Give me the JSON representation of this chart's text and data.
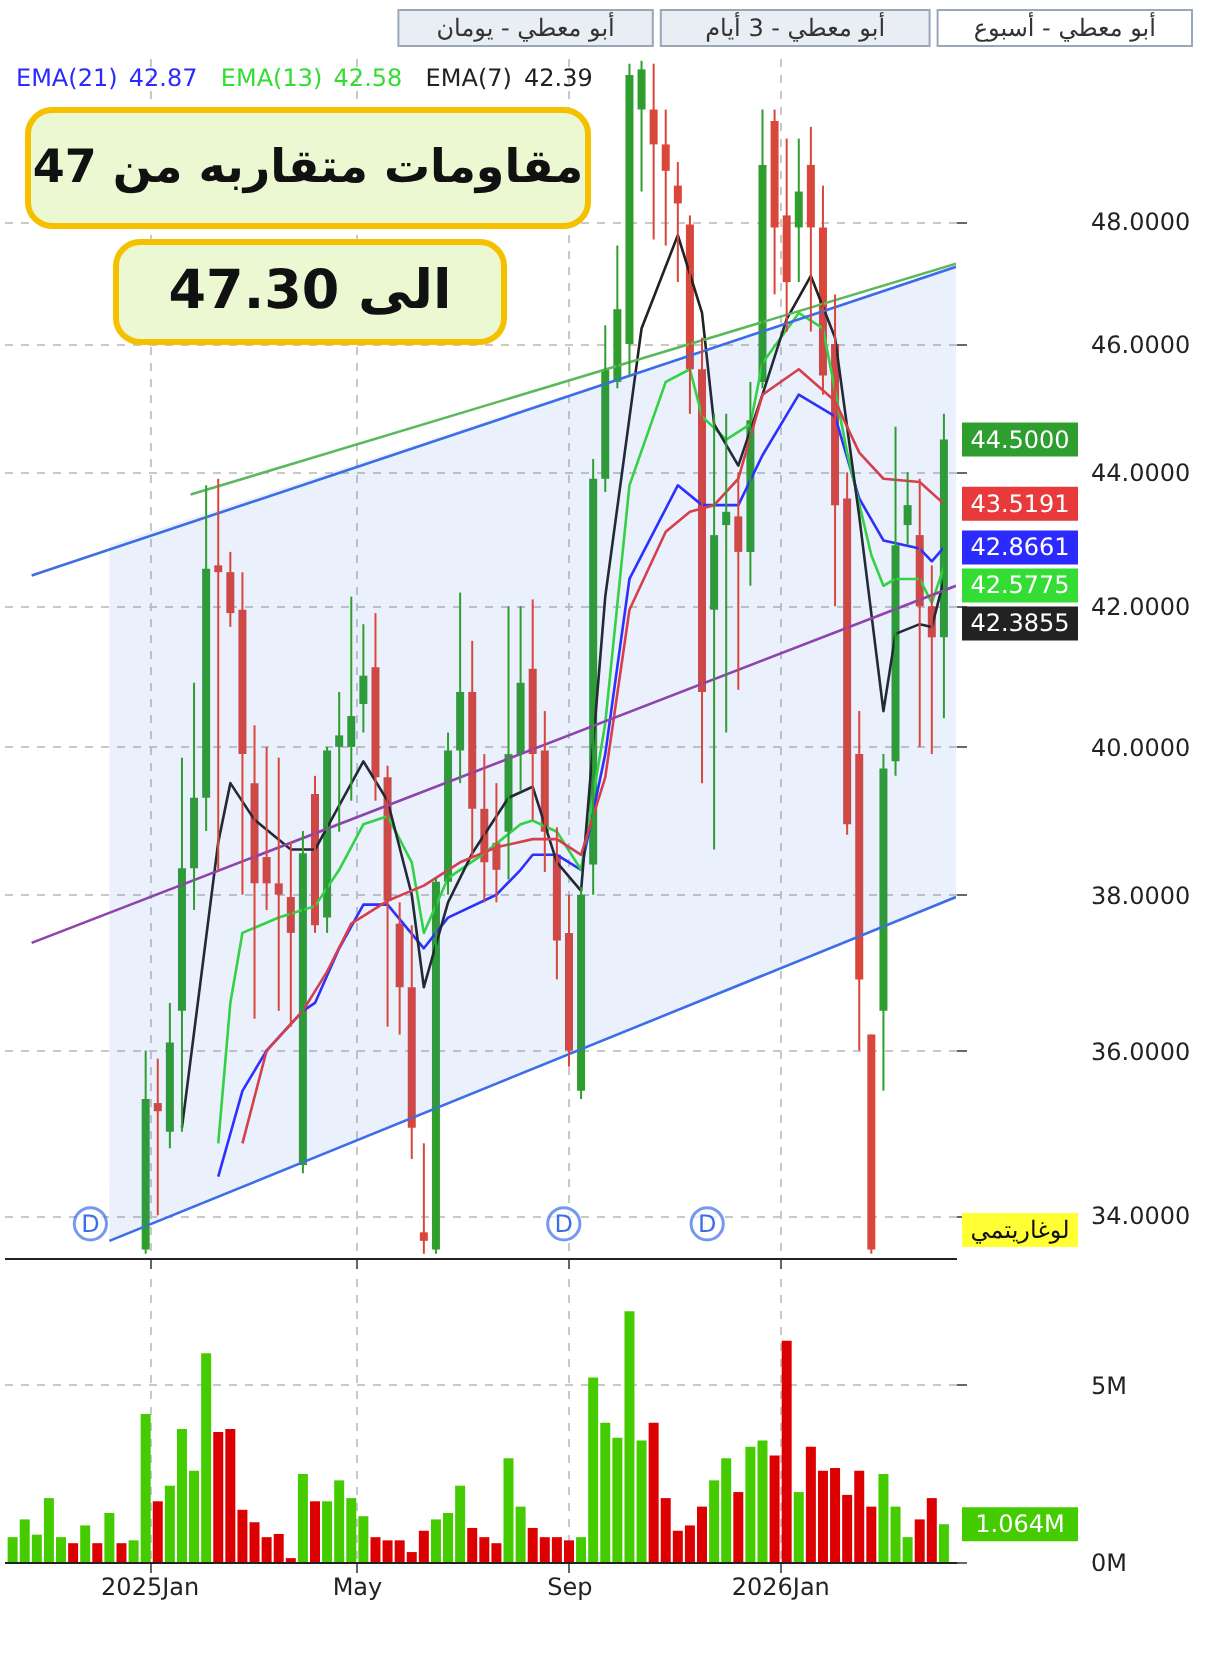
{
  "chart_data": [
    {
      "type": "candlestick",
      "x": [
        "2024-12-30",
        "2025-01-06",
        "2025-01-13",
        "2025-01-20",
        "2025-01-27",
        "2025-02-03",
        "2025-02-10",
        "2025-02-17",
        "2025-02-24",
        "2025-03-03",
        "2025-03-10",
        "2025-03-17",
        "2025-03-24",
        "2025-03-31",
        "2025-04-07",
        "2025-04-14",
        "2025-04-21",
        "2025-04-28",
        "2025-05-05",
        "2025-05-12",
        "2025-05-19",
        "2025-05-26",
        "2025-06-02",
        "2025-06-09",
        "2025-06-16",
        "2025-06-23",
        "2025-06-30",
        "2025-07-07",
        "2025-07-14",
        "2025-07-21",
        "2025-07-28",
        "2025-08-04",
        "2025-08-11",
        "2025-08-18",
        "2025-08-25",
        "2025-09-01",
        "2025-09-08",
        "2025-09-15",
        "2025-09-22",
        "2025-09-29",
        "2025-10-06",
        "2025-10-13",
        "2025-10-20",
        "2025-10-27",
        "2025-11-03",
        "2025-11-10",
        "2025-11-17",
        "2025-11-24",
        "2025-12-01",
        "2025-12-08",
        "2025-12-15",
        "2025-12-22",
        "2025-12-29",
        "2026-01-05",
        "2026-01-12",
        "2026-01-19",
        "2026-01-26",
        "2026-02-02",
        "2026-02-09",
        "2026-02-16",
        "2026-02-23",
        "2026-03-02",
        "2026-03-09",
        "2026-03-16",
        "2026-03-23",
        "2026-03-30",
        "2026-04-06"
      ],
      "ohlc": [
        [
          33.6,
          36.0,
          33.55,
          35.4
        ],
        [
          35.35,
          35.9,
          34.0,
          35.25
        ],
        [
          35.0,
          36.6,
          34.8,
          36.1
        ],
        [
          36.5,
          39.85,
          35.0,
          38.35
        ],
        [
          38.35,
          40.9,
          37.8,
          39.3
        ],
        [
          39.3,
          43.8,
          38.85,
          42.55
        ],
        [
          42.6,
          43.9,
          38.3,
          42.5
        ],
        [
          42.5,
          42.8,
          41.7,
          41.9
        ],
        [
          41.95,
          42.5,
          38.0,
          39.9
        ],
        [
          39.5,
          40.3,
          36.4,
          38.15
        ],
        [
          38.5,
          40.0,
          37.8,
          38.15
        ],
        [
          38.15,
          39.85,
          36.5,
          38.0
        ],
        [
          37.97,
          38.7,
          36.3,
          37.5
        ],
        [
          34.6,
          38.85,
          34.5,
          38.55
        ],
        [
          39.35,
          39.6,
          37.5,
          37.6
        ],
        [
          37.7,
          40.0,
          37.5,
          39.95
        ],
        [
          40.0,
          40.77,
          38.84,
          40.16
        ],
        [
          40.0,
          42.14,
          39.26,
          40.43
        ],
        [
          40.6,
          41.74,
          40.2,
          41.0
        ],
        [
          41.12,
          41.9,
          39.26,
          39.58
        ],
        [
          39.58,
          39.74,
          36.3,
          37.92
        ],
        [
          37.62,
          37.9,
          36.2,
          36.8
        ],
        [
          36.8,
          37.6,
          34.67,
          35.05
        ],
        [
          33.8,
          34.86,
          33.55,
          33.7
        ],
        [
          33.6,
          38.22,
          33.55,
          38.17
        ],
        [
          38.17,
          40.2,
          38.0,
          39.95
        ],
        [
          39.95,
          42.2,
          39.5,
          40.77
        ],
        [
          40.77,
          41.5,
          38.5,
          39.15
        ],
        [
          39.15,
          39.9,
          37.9,
          38.43
        ],
        [
          38.69,
          39.5,
          37.9,
          38.33
        ],
        [
          38.84,
          42.0,
          38.2,
          39.9
        ],
        [
          39.9,
          42.0,
          39.4,
          40.9
        ],
        [
          41.1,
          42.1,
          39.0,
          39.9
        ],
        [
          39.95,
          40.5,
          38.3,
          38.84
        ],
        [
          38.53,
          38.9,
          36.9,
          37.4
        ],
        [
          37.5,
          38.0,
          35.8,
          36.0
        ],
        [
          35.5,
          38.1,
          35.4,
          38.0
        ],
        [
          38.4,
          44.2,
          38.0,
          43.9
        ],
        [
          43.9,
          46.3,
          43.7,
          45.6
        ],
        [
          45.4,
          47.6,
          45.3,
          46.56
        ],
        [
          46.0,
          50.7,
          45.5,
          50.5
        ],
        [
          49.9,
          50.75,
          48.5,
          50.6
        ],
        [
          49.9,
          50.7,
          47.7,
          49.3
        ],
        [
          49.3,
          49.9,
          47.6,
          48.85
        ],
        [
          48.6,
          49.0,
          47.0,
          48.3
        ],
        [
          47.95,
          48.1,
          44.9,
          45.6
        ],
        [
          45.6,
          46.1,
          39.5,
          40.77
        ],
        [
          41.95,
          44.9,
          38.6,
          43.05
        ],
        [
          43.2,
          44.9,
          40.2,
          43.4
        ],
        [
          43.33,
          44.0,
          40.8,
          42.8
        ],
        [
          42.8,
          45.4,
          42.3,
          44.8
        ],
        [
          45.4,
          49.9,
          45.3,
          48.95
        ],
        [
          49.7,
          49.9,
          46.8,
          47.9
        ],
        [
          48.1,
          49.4,
          46.2,
          47.0
        ],
        [
          47.9,
          49.4,
          47.0,
          48.5
        ],
        [
          48.95,
          49.6,
          46.2,
          47.9
        ],
        [
          47.9,
          48.6,
          45.2,
          45.5
        ],
        [
          46.0,
          46.8,
          42.0,
          43.5
        ],
        [
          43.6,
          44.0,
          38.8,
          38.94
        ],
        [
          39.9,
          40.5,
          36.0,
          36.9
        ],
        [
          36.2,
          36.2,
          33.55,
          33.6
        ],
        [
          36.5,
          39.9,
          35.5,
          39.7
        ],
        [
          39.8,
          44.7,
          39.6,
          42.9
        ],
        [
          43.2,
          44.0,
          42.9,
          43.5
        ],
        [
          43.05,
          43.9,
          40.0,
          42.0
        ],
        [
          42.0,
          42.6,
          39.9,
          41.55
        ],
        [
          41.55,
          44.9,
          40.4,
          44.5
        ]
      ],
      "colors": [
        "#2e9e2e",
        "#d9473b",
        "#2e9e2e",
        "#2e9e2e",
        "#2e9e2e",
        "#2e9e2e",
        "#d9473b",
        "#d9473b",
        "#d9473b",
        "#d9473b",
        "#d9473b",
        "#d9473b",
        "#d9473b",
        "#2e9e2e",
        "#d9473b",
        "#2e9e2e",
        "#2e9e2e",
        "#2e9e2e",
        "#2e9e2e",
        "#d9473b",
        "#d9473b",
        "#d9473b",
        "#d9473b",
        "#d9473b",
        "#2e9e2e",
        "#2e9e2e",
        "#2e9e2e",
        "#d9473b",
        "#d9473b",
        "#d9473b",
        "#2e9e2e",
        "#2e9e2e",
        "#d9473b",
        "#d9473b",
        "#d9473b",
        "#d9473b",
        "#2e9e2e",
        "#2e9e2e",
        "#2e9e2e",
        "#2e9e2e",
        "#2e9e2e",
        "#2e9e2e",
        "#d9473b",
        "#d9473b",
        "#d9473b",
        "#d9473b",
        "#d9473b",
        "#2e9e2e",
        "#2e9e2e",
        "#d9473b",
        "#2e9e2e",
        "#2e9e2e",
        "#d9473b",
        "#d9473b",
        "#2e9e2e",
        "#d9473b",
        "#d9473b",
        "#d9473b",
        "#d9473b",
        "#d9473b",
        "#d9473b",
        "#2e9e2e",
        "#2e9e2e",
        "#2e9e2e",
        "#d9473b",
        "#d9473b",
        "#2e9e2e"
      ],
      "series": [
        {
          "name": "EMA(21)",
          "type": "line",
          "color": "#2b2bff",
          "x": [
            "2025-02-10",
            "2025-02-24",
            "2025-03-10",
            "2025-03-31",
            "2025-04-07",
            "2025-04-21",
            "2025-05-05",
            "2025-05-19",
            "2025-06-09",
            "2025-06-23",
            "2025-07-21",
            "2025-08-04",
            "2025-08-11",
            "2025-08-25",
            "2025-09-08",
            "2025-09-22",
            "2025-10-06",
            "2025-11-03",
            "2025-11-17",
            "2025-12-08",
            "2025-12-22",
            "2026-01-12",
            "2026-02-02",
            "2026-02-16",
            "2026-03-02",
            "2026-03-23",
            "2026-03-30",
            "2026-04-06"
          ],
          "values": [
            34.46,
            35.5,
            36.0,
            36.5,
            36.6,
            37.3,
            37.87,
            37.87,
            37.3,
            37.7,
            38.0,
            38.33,
            38.53,
            38.53,
            38.33,
            39.9,
            42.4,
            43.8,
            43.5,
            43.5,
            44.26,
            45.2,
            44.86,
            43.6,
            42.97,
            42.85,
            42.66,
            42.8661
          ],
          "value_labels": [
            null,
            null,
            null,
            null,
            null,
            null,
            null,
            null,
            null,
            null,
            null,
            null,
            null,
            null,
            null,
            null,
            null,
            null,
            null,
            null,
            null,
            null,
            null,
            null,
            null,
            null,
            null,
            "42.8661"
          ]
        },
        {
          "name": "EMA(13)",
          "type": "line",
          "color": "#33dd33",
          "x": [
            "2025-02-10",
            "2025-02-17",
            "2025-02-24",
            "2025-03-17",
            "2025-04-07",
            "2025-04-21",
            "2025-05-05",
            "2025-05-19",
            "2025-06-02",
            "2025-06-09",
            "2025-06-23",
            "2025-07-14",
            "2025-08-04",
            "2025-08-11",
            "2025-08-25",
            "2025-09-08",
            "2025-09-22",
            "2025-10-06",
            "2025-10-27",
            "2025-11-10",
            "2025-11-17",
            "2025-12-01",
            "2025-12-15",
            "2025-12-22",
            "2026-01-12",
            "2026-01-26",
            "2026-02-09",
            "2026-02-23",
            "2026-03-02",
            "2026-03-09",
            "2026-03-23",
            "2026-03-30",
            "2026-04-06"
          ],
          "values": [
            34.86,
            36.6,
            37.5,
            37.7,
            37.85,
            38.33,
            38.94,
            39.05,
            38.43,
            37.5,
            38.22,
            38.55,
            38.94,
            38.99,
            38.84,
            38.33,
            40.33,
            43.8,
            45.4,
            45.6,
            44.86,
            44.5,
            44.74,
            45.7,
            46.5,
            46.25,
            44.3,
            42.75,
            42.3,
            42.4,
            42.4,
            42.05,
            42.5775
          ],
          "value_labels": [
            null,
            null,
            null,
            null,
            null,
            null,
            null,
            null,
            null,
            null,
            null,
            null,
            null,
            null,
            null,
            null,
            null,
            null,
            null,
            null,
            null,
            null,
            null,
            null,
            null,
            null,
            null,
            null,
            null,
            null,
            null,
            null,
            "42.5775"
          ]
        },
        {
          "name": "EMA(7)",
          "type": "line",
          "color": "#222222",
          "x": [
            "2025-01-20",
            "2025-02-10",
            "2025-02-17",
            "2025-03-03",
            "2025-03-24",
            "2025-04-07",
            "2025-05-05",
            "2025-05-19",
            "2025-06-02",
            "2025-06-09",
            "2025-06-23",
            "2025-07-07",
            "2025-07-28",
            "2025-08-11",
            "2025-08-25",
            "2025-09-08",
            "2025-09-22",
            "2025-10-13",
            "2025-11-03",
            "2025-11-17",
            "2025-11-24",
            "2025-12-08",
            "2025-12-22",
            "2026-01-05",
            "2026-01-19",
            "2026-02-02",
            "2026-02-16",
            "2026-03-02",
            "2026-03-09",
            "2026-03-23",
            "2026-03-30",
            "2026-04-06"
          ],
          "values": [
            35.05,
            38.7,
            39.5,
            39.0,
            38.6,
            38.6,
            39.8,
            39.26,
            38.0,
            36.8,
            37.9,
            38.55,
            39.3,
            39.45,
            38.43,
            38.05,
            42.14,
            46.25,
            47.77,
            46.5,
            44.74,
            44.1,
            45.2,
            46.4,
            47.1,
            46.1,
            43.33,
            40.5,
            41.6,
            41.74,
            41.7,
            42.3855
          ],
          "value_labels": [
            null,
            null,
            null,
            null,
            null,
            null,
            null,
            null,
            null,
            null,
            null,
            null,
            null,
            null,
            null,
            null,
            null,
            null,
            null,
            null,
            null,
            null,
            null,
            null,
            null,
            null,
            null,
            null,
            null,
            null,
            null,
            "42.3855"
          ]
        },
        {
          "type": "line",
          "color": "#e83a3a",
          "x": [
            "2025-02-24",
            "2025-03-10",
            "2025-03-31",
            "2025-04-14",
            "2025-04-28",
            "2025-05-19",
            "2025-06-09",
            "2025-06-30",
            "2025-07-21",
            "2025-08-11",
            "2025-08-25",
            "2025-09-08",
            "2025-09-22",
            "2025-10-06",
            "2025-10-27",
            "2025-11-10",
            "2025-11-24",
            "2025-12-08",
            "2025-12-22",
            "2026-01-12",
            "2026-02-02",
            "2026-02-16",
            "2026-03-02",
            "2026-03-23",
            "2026-04-06"
          ],
          "values": [
            34.86,
            36.0,
            36.5,
            37.0,
            37.62,
            37.92,
            38.12,
            38.43,
            38.63,
            38.74,
            38.74,
            38.53,
            39.58,
            41.95,
            43.1,
            43.4,
            43.5,
            43.9,
            45.2,
            45.6,
            45.1,
            44.3,
            43.9,
            43.85,
            43.5191
          ],
          "value_labels": [
            null,
            null,
            null,
            null,
            null,
            null,
            null,
            null,
            null,
            null,
            null,
            null,
            null,
            null,
            null,
            null,
            null,
            null,
            null,
            null,
            null,
            null,
            null,
            null,
            "43.5191"
          ]
        },
        {
          "type": "line",
          "color": "#3d6de8",
          "x": [
            "2024-10-25",
            "2026-04-13"
          ],
          "values": [
            42.45,
            47.25
          ]
        },
        {
          "type": "line",
          "color": "#3d6de8",
          "x": [
            "2024-12-09",
            "2026-04-13"
          ],
          "values": [
            33.7,
            37.97
          ],
          "lower": [
            33.7,
            37.97
          ],
          "upper": [
            42.9,
            47.25
          ]
        },
        {
          "type": "line",
          "color": "#8e44ad",
          "x": [
            "2024-10-25",
            "2026-04-13"
          ],
          "values": [
            37.37,
            42.3
          ]
        },
        {
          "type": "line",
          "color": "#5cb85c",
          "x": [
            "2025-01-25",
            "2026-04-13"
          ],
          "values": [
            43.66,
            47.3
          ]
        }
      ],
      "xlim": [
        "2024-10-09",
        "2026-04-13"
      ],
      "xticks": [
        {
          "value": "2025-01-01",
          "label": null
        },
        {
          "value": "2025-05-01",
          "label": null
        },
        {
          "value": "2025-09-01",
          "label": null
        },
        {
          "value": "2026-01-01",
          "label": null
        }
      ],
      "ylim": [
        33.5,
        50.8
      ],
      "yticks": [
        {
          "value": 34,
          "label": "34.0000"
        },
        {
          "value": 36,
          "label": "36.0000"
        },
        {
          "value": 38,
          "label": "38.0000"
        },
        {
          "value": 40,
          "label": "40.0000"
        },
        {
          "value": 42,
          "label": "42.0000"
        },
        {
          "value": 44,
          "label": "44.0000"
        },
        {
          "value": 46,
          "label": "46.0000"
        },
        {
          "value": 48,
          "label": "48.0000"
        }
      ],
      "log": true,
      "grid": true,
      "tick_labels": "y",
      "annotations": [
        "42.87",
        "42.58",
        "42.39",
        "مقاومات متقاربه من 47",
        "الى 47.30",
        "لوغاريتمي",
        {
          "text": "44.5000",
          "x": "2026-04-06",
          "y": 44.5
        },
        {
          "text": "D",
          "x": "2024-11-28",
          "y": 33.9
        },
        {
          "text": "D",
          "x": "2025-08-29",
          "y": 33.9
        },
        {
          "text": "D",
          "x": "2025-11-20",
          "y": 33.9
        },
        "أبو معطي - أسبوع",
        "أبو معطي - 3 أيام",
        "أبو معطي - يومان"
      ]
    },
    {
      "type": "bar",
      "x": [
        "2024-10-14",
        "2024-10-21",
        "2024-10-28",
        "2024-11-04",
        "2024-11-11",
        "2024-11-18",
        "2024-11-25",
        "2024-12-02",
        "2024-12-09",
        "2024-12-16",
        "2024-12-23",
        "2024-12-30",
        "2025-01-06",
        "2025-01-13",
        "2025-01-20",
        "2025-01-27",
        "2025-02-03",
        "2025-02-10",
        "2025-02-17",
        "2025-02-24",
        "2025-03-03",
        "2025-03-10",
        "2025-03-17",
        "2025-03-24",
        "2025-03-31",
        "2025-04-07",
        "2025-04-14",
        "2025-04-21",
        "2025-04-28",
        "2025-05-05",
        "2025-05-12",
        "2025-05-19",
        "2025-05-26",
        "2025-06-02",
        "2025-06-09",
        "2025-06-16",
        "2025-06-23",
        "2025-06-30",
        "2025-07-07",
        "2025-07-14",
        "2025-07-21",
        "2025-07-28",
        "2025-08-04",
        "2025-08-11",
        "2025-08-18",
        "2025-08-25",
        "2025-09-01",
        "2025-09-08",
        "2025-09-15",
        "2025-09-22",
        "2025-09-29",
        "2025-10-06",
        "2025-10-13",
        "2025-10-20",
        "2025-10-27",
        "2025-11-03",
        "2025-11-10",
        "2025-11-17",
        "2025-11-24",
        "2025-12-01",
        "2025-12-08",
        "2025-12-15",
        "2025-12-22",
        "2025-12-29",
        "2026-01-05",
        "2026-01-12",
        "2026-01-19",
        "2026-01-26",
        "2026-02-02",
        "2026-02-09",
        "2026-02-16",
        "2026-02-23",
        "2026-03-02",
        "2026-03-09",
        "2026-03-16",
        "2026-03-23",
        "2026-03-30",
        "2026-04-06"
      ],
      "values": [
        0.7,
        1.2,
        0.77,
        1.8,
        0.7,
        0.53,
        1.03,
        0.53,
        1.38,
        0.53,
        0.61,
        4.17,
        1.71,
        2.15,
        3.75,
        2.57,
        5.88,
        3.66,
        3.75,
        1.47,
        1.12,
        0.7,
        0.79,
        0.11,
        2.48,
        1.71,
        1.71,
        2.3,
        1.8,
        1.29,
        0.7,
        0.61,
        0.61,
        0.28,
        0.88,
        1.2,
        1.38,
        2.15,
        0.96,
        0.7,
        0.53,
        2.92,
        1.56,
        0.96,
        0.7,
        0.7,
        0.61,
        0.7,
        5.2,
        3.92,
        3.5,
        7.06,
        3.42,
        3.92,
        1.8,
        0.88,
        1.03,
        1.56,
        2.3,
        2.92,
        1.97,
        3.25,
        3.42,
        3.0,
        6.23,
        1.97,
        3.25,
        2.57,
        2.65,
        1.89,
        2.57,
        1.56,
        2.48,
        1.56,
        0.7,
        1.2,
        1.8,
        1.064
      ],
      "colors": [
        "#44cc00",
        "#44cc00",
        "#44cc00",
        "#44cc00",
        "#44cc00",
        "#dd0000",
        "#44cc00",
        "#dd0000",
        "#44cc00",
        "#dd0000",
        "#44cc00",
        "#44cc00",
        "#dd0000",
        "#44cc00",
        "#44cc00",
        "#44cc00",
        "#44cc00",
        "#dd0000",
        "#dd0000",
        "#dd0000",
        "#dd0000",
        "#dd0000",
        "#dd0000",
        "#dd0000",
        "#44cc00",
        "#dd0000",
        "#44cc00",
        "#44cc00",
        "#44cc00",
        "#44cc00",
        "#dd0000",
        "#dd0000",
        "#dd0000",
        "#dd0000",
        "#dd0000",
        "#44cc00",
        "#44cc00",
        "#44cc00",
        "#dd0000",
        "#dd0000",
        "#dd0000",
        "#44cc00",
        "#44cc00",
        "#dd0000",
        "#dd0000",
        "#dd0000",
        "#dd0000",
        "#44cc00",
        "#44cc00",
        "#44cc00",
        "#44cc00",
        "#44cc00",
        "#44cc00",
        "#dd0000",
        "#dd0000",
        "#dd0000",
        "#dd0000",
        "#dd0000",
        "#44cc00",
        "#44cc00",
        "#dd0000",
        "#44cc00",
        "#44cc00",
        "#dd0000",
        "#dd0000",
        "#44cc00",
        "#dd0000",
        "#dd0000",
        "#dd0000",
        "#dd0000",
        "#dd0000",
        "#dd0000",
        "#44cc00",
        "#44cc00",
        "#44cc00",
        "#dd0000",
        "#dd0000",
        "#44cc00"
      ],
      "value_labels": [
        null,
        null,
        null,
        null,
        null,
        null,
        null,
        null,
        null,
        null,
        null,
        null,
        null,
        null,
        null,
        null,
        null,
        null,
        null,
        null,
        null,
        null,
        null,
        null,
        null,
        null,
        null,
        null,
        null,
        null,
        null,
        null,
        null,
        null,
        null,
        null,
        null,
        null,
        null,
        null,
        null,
        null,
        null,
        null,
        null,
        null,
        null,
        null,
        null,
        null,
        null,
        null,
        null,
        null,
        null,
        null,
        null,
        null,
        null,
        null,
        null,
        null,
        null,
        null,
        null,
        null,
        null,
        null,
        null,
        null,
        null,
        null,
        null,
        null,
        null,
        null,
        null,
        "1.064M"
      ],
      "xlim": [
        "2024-10-09",
        "2026-04-13"
      ],
      "xticks": [
        {
          "value": "2025-01-01",
          "label": "2025Jan"
        },
        {
          "value": "2025-05-01",
          "label": "May"
        },
        {
          "value": "2025-09-01",
          "label": "Sep"
        },
        {
          "value": "2026-01-01",
          "label": "2026Jan"
        }
      ],
      "ylim": [
        0,
        8
      ],
      "yticks": [
        {
          "value": 0,
          "label": "0M"
        },
        {
          "value": 5,
          "label": "5M"
        }
      ],
      "grid": true
    }
  ]
}
